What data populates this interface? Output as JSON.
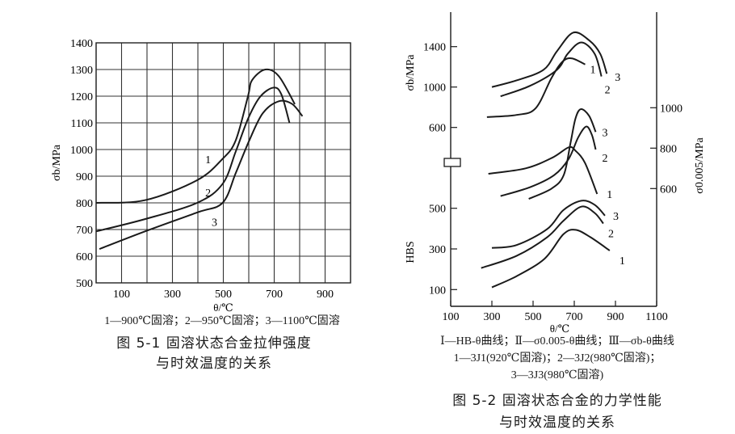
{
  "figures": [
    {
      "legend_lines": [
        "1—900℃固溶；2—950℃固溶；3—1100℃固溶"
      ],
      "title_lines": [
        "图 5-1  固溶状态合金拉伸强度",
        "与时效温度的关系"
      ]
    },
    {
      "legend_lines": [
        "Ⅰ—HB-θ曲线；Ⅱ—σ0.005-θ曲线；Ⅲ—σb-θ曲线",
        "1—3J1(920℃固溶)；2—3J2(980℃固溶)；",
        "3—3J3(980℃固溶)"
      ],
      "title_lines": [
        "图 5-2  固溶状态合金的力学性能",
        "与时效温度的关系"
      ]
    }
  ],
  "chart_data": [
    {
      "type": "line",
      "xlabel": "θ/℃",
      "ylabel": "σb/MPa",
      "xlim": [
        0,
        1000
      ],
      "ylim": [
        500,
        1400
      ],
      "xticks": [
        100,
        300,
        500,
        700,
        900
      ],
      "yticks": [
        500,
        600,
        700,
        800,
        900,
        1000,
        1100,
        1200,
        1300,
        1400
      ],
      "grid": true,
      "series": [
        {
          "name": "1",
          "x": [
            0,
            192,
            397,
            497,
            549,
            597,
            613,
            665,
            718,
            781
          ],
          "y": [
            800,
            810,
            885,
            965,
            1035,
            1200,
            1260,
            1300,
            1275,
            1170
          ],
          "label_at": [
            440,
            963
          ]
        },
        {
          "name": "2",
          "x": [
            0,
            192,
            397,
            497,
            549,
            597,
            644,
            697,
            728,
            760
          ],
          "y": [
            693,
            739,
            800,
            871,
            993,
            1115,
            1197,
            1232,
            1207,
            1100
          ],
          "label_at": [
            440,
            840
          ]
        },
        {
          "name": "3",
          "x": [
            13,
            192,
            397,
            497,
            549,
            602,
            655,
            718,
            770,
            811
          ],
          "y": [
            627,
            693,
            764,
            800,
            912,
            1034,
            1136,
            1181,
            1171,
            1125
          ],
          "label_at": [
            465,
            729
          ]
        }
      ]
    },
    {
      "type": "line",
      "xlabel": "θ/℃",
      "xlim": [
        100,
        1100
      ],
      "xticks": [
        100,
        300,
        500,
        700,
        900,
        1100
      ],
      "grid": false,
      "axes": {
        "sigma_b": {
          "label": "σb/MPa",
          "side": "left",
          "ticks": [
            1400,
            1000,
            600
          ]
        },
        "sigma_0005": {
          "label": "σ0.005/MPa",
          "side": "right",
          "ticks": [
            1000,
            800,
            600
          ]
        },
        "hbs": {
          "label": "HBS",
          "side": "left",
          "ticks": [
            500,
            300,
            100
          ]
        }
      },
      "axis_break": true,
      "series": [
        {
          "axis": "sigma_b",
          "name": "1",
          "x": [
            276,
            420,
            512,
            590,
            642,
            688,
            753
          ],
          "y": [
            703,
            724,
            789,
            1092,
            1250,
            1284,
            1224
          ]
        },
        {
          "axis": "sigma_b",
          "name": "2",
          "x": [
            342,
            486,
            616,
            668,
            734,
            799,
            832
          ],
          "y": [
            908,
            1013,
            1171,
            1329,
            1442,
            1329,
            1105
          ]
        },
        {
          "axis": "sigma_b",
          "name": "3",
          "x": [
            300,
            420,
            551,
            616,
            695,
            773,
            826,
            858
          ],
          "y": [
            1000,
            1066,
            1171,
            1355,
            1539,
            1461,
            1329,
            1132
          ]
        },
        {
          "axis": "sigma_0005",
          "name": "1",
          "x": [
            283,
            464,
            594,
            673,
            706,
            752,
            811
          ],
          "y": [
            673,
            700,
            753,
            804,
            787,
            727,
            573
          ]
        },
        {
          "axis": "sigma_0005",
          "name": "2",
          "x": [
            342,
            486,
            603,
            673,
            719,
            758,
            785,
            804
          ],
          "y": [
            563,
            607,
            667,
            747,
            853,
            907,
            867,
            793
          ]
        },
        {
          "axis": "sigma_0005",
          "name": "3",
          "x": [
            479,
            590,
            649,
            682,
            706,
            732,
            772,
            804
          ],
          "y": [
            549,
            600,
            667,
            827,
            947,
            993,
            960,
            880
          ]
        },
        {
          "axis": "hbs",
          "name": "1",
          "x": [
            300,
            420,
            556,
            647,
            706,
            778,
            872
          ],
          "y": [
            111,
            166,
            252,
            372,
            394,
            358,
            292
          ]
        },
        {
          "axis": "hbs",
          "name": "2",
          "x": [
            248,
            420,
            569,
            647,
            734,
            799,
            841
          ],
          "y": [
            206,
            266,
            358,
            438,
            508,
            477,
            425
          ]
        },
        {
          "axis": "hbs",
          "name": "3",
          "x": [
            300,
            420,
            569,
            647,
            734,
            799,
            849
          ],
          "y": [
            305,
            319,
            398,
            491,
            537,
            517,
            464
          ]
        }
      ]
    }
  ]
}
